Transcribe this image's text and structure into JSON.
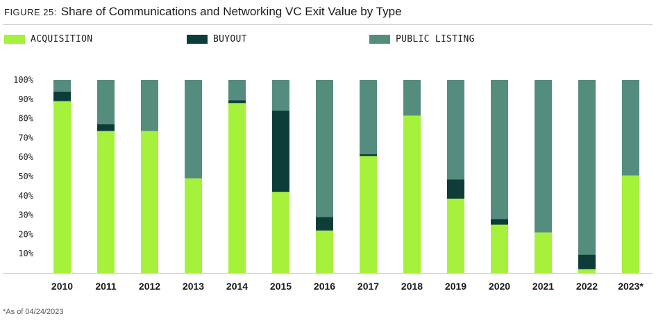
{
  "title": {
    "figure_label": "FIGURE 25:",
    "text": "Share of Communications and Networking VC Exit Value by Type"
  },
  "footnote": "*As of 04/24/2023",
  "colors": {
    "acquisition": "#a6f13c",
    "buyout": "#0e3d39",
    "public_listing": "#548d7e"
  },
  "chart_data": {
    "type": "bar",
    "stacked": true,
    "categories": [
      "2010",
      "2011",
      "2012",
      "2013",
      "2014",
      "2015",
      "2016",
      "2017",
      "2018",
      "2019",
      "2020",
      "2021",
      "2022",
      "2023*"
    ],
    "series": [
      {
        "name": "ACQUISITION",
        "values": [
          89,
          73.5,
          73.5,
          49,
          88,
          42,
          22,
          60.5,
          81.5,
          38.5,
          25,
          21,
          2,
          50.5
        ]
      },
      {
        "name": "BUYOUT",
        "values": [
          5,
          3.5,
          0,
          0,
          1.5,
          42,
          7,
          1,
          0,
          10,
          3,
          0,
          7.5,
          0
        ]
      },
      {
        "name": "PUBLIC LISTING",
        "values": [
          6,
          23,
          26.5,
          51,
          10.5,
          16,
          71,
          38.5,
          18.5,
          51.5,
          72,
          79,
          90.5,
          49.5
        ]
      }
    ],
    "ylim": [
      0,
      100
    ],
    "yticks": [
      "10%",
      "20%",
      "30%",
      "40%",
      "50%",
      "60%",
      "70%",
      "80%",
      "90%",
      "100%"
    ],
    "ytick_values": [
      10,
      20,
      30,
      40,
      50,
      60,
      70,
      80,
      90,
      100
    ],
    "grid": false,
    "legend_position": "top"
  }
}
